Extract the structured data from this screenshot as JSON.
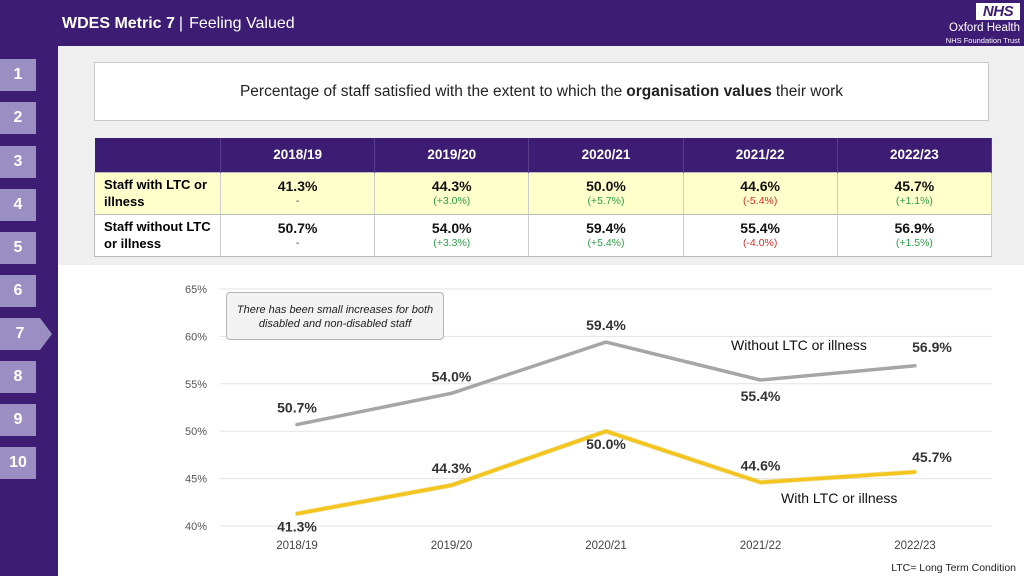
{
  "header": {
    "metric": "WDES Metric 7",
    "separator": "|",
    "subtitle": "Feeling Valued",
    "logo_text": "NHS",
    "org_name": "Oxford Health",
    "org_subtitle": "NHS Foundation Trust"
  },
  "nav": {
    "active": "7",
    "tabs": [
      "1",
      "2",
      "3",
      "4",
      "5",
      "6",
      "7",
      "8",
      "9",
      "10"
    ]
  },
  "question": {
    "prefix": "Percentage of staff satisfied with the extent to which the",
    "bold": "organisation values",
    "suffix": "their work"
  },
  "table": {
    "years": [
      "2018/19",
      "2019/20",
      "2020/21",
      "2021/22",
      "2022/23"
    ],
    "rows": [
      {
        "label": "Staff with LTC or illness",
        "values": [
          "41.3%",
          "44.3%",
          "50.0%",
          "44.6%",
          "45.7%"
        ],
        "changes": [
          "-",
          "(+3.0%)",
          "(+5.7%)",
          "(-5.4%)",
          "(+1.1%)"
        ],
        "change_dirs": [
          "none",
          "up",
          "up",
          "down",
          "up"
        ]
      },
      {
        "label": "Staff without LTC or illness",
        "values": [
          "50.7%",
          "54.0%",
          "59.4%",
          "55.4%",
          "56.9%"
        ],
        "changes": [
          "-",
          "(+3.3%)",
          "(+5.4%)",
          "(-4.0%)",
          "(+1.5%)"
        ],
        "change_dirs": [
          "none",
          "up",
          "up",
          "down",
          "up"
        ]
      }
    ]
  },
  "chart_data": {
    "type": "line",
    "categories": [
      "2018/19",
      "2019/20",
      "2020/21",
      "2021/22",
      "2022/23"
    ],
    "ylim": [
      40,
      65
    ],
    "yticks": [
      40,
      45,
      50,
      55,
      60,
      65
    ],
    "ytick_labels": [
      "40%",
      "45%",
      "50%",
      "55%",
      "60%",
      "65%"
    ],
    "series": [
      {
        "name": "Without LTC or illness",
        "values": [
          50.7,
          54.0,
          59.4,
          55.4,
          56.9
        ],
        "labels": [
          "50.7%",
          "54.0%",
          "59.4%",
          "55.4%",
          "56.9%"
        ],
        "color": "#a6a6a6"
      },
      {
        "name": "With LTC or illness",
        "values": [
          41.3,
          44.3,
          50.0,
          44.6,
          45.7
        ],
        "labels": [
          "41.3%",
          "44.3%",
          "50.0%",
          "44.6%",
          "45.7%"
        ],
        "color": "#f2c51f"
      }
    ],
    "annotation": "There has been small increases for both disabled and non-disabled staff",
    "grid": true
  },
  "footnote": "LTC= Long Term Condition",
  "colors": {
    "brand": "#3c1d73",
    "nav_tab": "#9b8ec2",
    "up": "#2f9c4a",
    "down": "#d0312d"
  }
}
